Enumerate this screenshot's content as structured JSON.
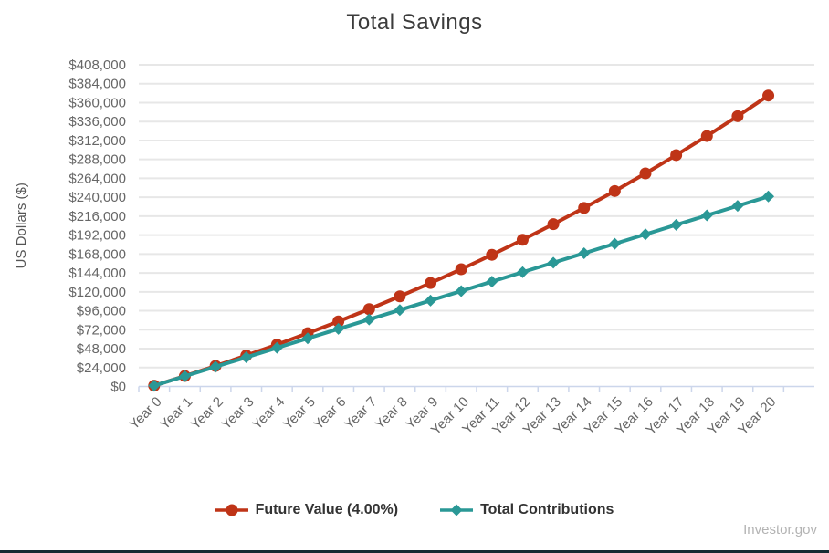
{
  "page": {
    "footer_credit": "Investor.gov",
    "bottom_bar_color": "#152b32"
  },
  "chart_data": {
    "type": "line",
    "title": "Total Savings",
    "xlabel": "",
    "ylabel": "US Dollars ($)",
    "categories": [
      "Year 0",
      "Year 1",
      "Year 2",
      "Year 3",
      "Year 4",
      "Year 5",
      "Year 6",
      "Year 7",
      "Year 8",
      "Year 9",
      "Year 10",
      "Year 11",
      "Year 12",
      "Year 13",
      "Year 14",
      "Year 15",
      "Year 16",
      "Year 17",
      "Year 18",
      "Year 19",
      "Year 20"
    ],
    "ylim": [
      0,
      408000
    ],
    "ytick_step": 24000,
    "ytick_prefix": "$",
    "grid": true,
    "legend_position": "bottom",
    "series": [
      {
        "name": "Future Value (4.00%)",
        "color": "#bf3417",
        "marker": "circle",
        "values": [
          1000,
          13263,
          26026,
          39309,
          53133,
          67520,
          82494,
          98077,
          114295,
          131174,
          148741,
          167024,
          186050,
          205852,
          226460,
          247908,
          270230,
          293462,
          317639,
          342803,
          368998
        ]
      },
      {
        "name": "Total Contributions",
        "color": "#2a9896",
        "marker": "diamond",
        "values": [
          1000,
          13000,
          25000,
          37000,
          49000,
          61000,
          73000,
          85000,
          97000,
          109000,
          121000,
          133000,
          145000,
          157000,
          169000,
          181000,
          193000,
          205000,
          217000,
          229000,
          241000
        ]
      }
    ],
    "style": {
      "gridline_color": "#e7e7e7",
      "axis_line_color": "#ccd6eb",
      "tick_label_color": "#666666",
      "axis_title_color": "#555555",
      "title_color": "#3c3c3c",
      "legend_text_color": "#333333"
    }
  }
}
